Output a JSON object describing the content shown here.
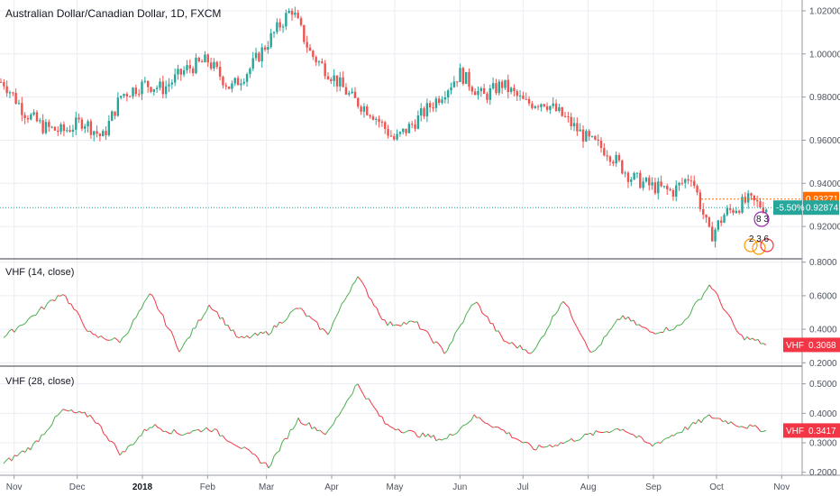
{
  "title": "Australian Dollar/Canadian Dollar, 1D, FXCM",
  "x_labels": [
    "Nov",
    "Dec",
    "2018",
    "Feb",
    "Mar",
    "Apr",
    "May",
    "Jun",
    "Jul",
    "Aug",
    "Sep",
    "Oct",
    "Nov"
  ],
  "colors": {
    "up": "#26a69a",
    "down": "#ef5350",
    "vhf_up": "#4caf50",
    "vhf_down": "#f23645",
    "last": "#26a69a",
    "high": "#ff6d00",
    "grid": "#e9ecf2",
    "border": "#9598a1"
  },
  "panels": [
    {
      "name": "price",
      "ticks": [
        "1.02000",
        "1.00000",
        "0.98000",
        "0.96000",
        "0.94000",
        "0.92000"
      ]
    },
    {
      "name": "vhf14",
      "label": "VHF (14, close)",
      "ticks": [
        "0.8000",
        "0.6000",
        "0.4000",
        "0.2000"
      ],
      "tag_label": "VHF",
      "tag_value": "0.3068"
    },
    {
      "name": "vhf28",
      "label": "VHF (28, close)",
      "ticks": [
        "0.5000",
        "0.4000",
        "0.3000",
        "0.2000"
      ],
      "tag_label": "VHF",
      "tag_value": "0.3417"
    }
  ],
  "price_tags": {
    "high": "0.93271",
    "last": "0.92874",
    "change": "-5.50%"
  },
  "events": {
    "top_numbers": "8 3",
    "bottom_numbers": "2 3 6"
  },
  "chart_data": [
    {
      "type": "candlestick",
      "title": "Australian Dollar/Canadian Dollar, 1D, FXCM",
      "ylim": [
        0.905,
        1.025
      ],
      "x": [
        "2017-10-27",
        "2017-11-06",
        "2017-11-15",
        "2017-11-24",
        "2017-12-04",
        "2017-12-13",
        "2017-12-22",
        "2018-01-02",
        "2018-01-11",
        "2018-01-22",
        "2018-02-01",
        "2018-02-12",
        "2018-02-21",
        "2018-03-02",
        "2018-03-13",
        "2018-03-22",
        "2018-04-02",
        "2018-04-11",
        "2018-04-20",
        "2018-05-01",
        "2018-05-10",
        "2018-05-21",
        "2018-06-01",
        "2018-06-12",
        "2018-06-21",
        "2018-07-02",
        "2018-07-11",
        "2018-07-20",
        "2018-08-01",
        "2018-08-10",
        "2018-08-21",
        "2018-08-30",
        "2018-09-10",
        "2018-09-19",
        "2018-09-28",
        "2018-10-05",
        "2018-10-16",
        "2018-10-25"
      ],
      "close": [
        0.987,
        0.973,
        0.966,
        0.964,
        0.969,
        0.961,
        0.981,
        0.986,
        0.984,
        0.993,
        0.997,
        0.984,
        0.993,
        1.006,
        1.021,
        1.0,
        0.989,
        0.979,
        0.973,
        0.96,
        0.968,
        0.979,
        0.991,
        0.98,
        0.986,
        0.977,
        0.978,
        0.971,
        0.96,
        0.955,
        0.943,
        0.939,
        0.936,
        0.944,
        0.915,
        0.926,
        0.932,
        0.9287
      ],
      "last": 0.92874,
      "high_marker": 0.93271
    },
    {
      "type": "line",
      "name": "VHF (14, close)",
      "ylim": [
        0.18,
        0.82
      ],
      "x": [
        "2017-10-27",
        "2017-11-10",
        "2017-11-24",
        "2017-12-08",
        "2017-12-22",
        "2018-01-05",
        "2018-01-19",
        "2018-02-02",
        "2018-02-16",
        "2018-03-02",
        "2018-03-16",
        "2018-03-30",
        "2018-04-13",
        "2018-04-27",
        "2018-05-11",
        "2018-05-25",
        "2018-06-08",
        "2018-06-22",
        "2018-07-06",
        "2018-07-20",
        "2018-08-03",
        "2018-08-17",
        "2018-08-31",
        "2018-09-14",
        "2018-09-28",
        "2018-10-12",
        "2018-10-26"
      ],
      "values": [
        0.35,
        0.48,
        0.62,
        0.36,
        0.33,
        0.61,
        0.27,
        0.55,
        0.34,
        0.38,
        0.53,
        0.37,
        0.72,
        0.43,
        0.44,
        0.26,
        0.57,
        0.33,
        0.26,
        0.58,
        0.25,
        0.48,
        0.38,
        0.42,
        0.67,
        0.36,
        0.3068
      ]
    },
    {
      "type": "line",
      "name": "VHF (28, close)",
      "ylim": [
        0.19,
        0.56
      ],
      "x": [
        "2017-10-27",
        "2017-11-10",
        "2017-11-24",
        "2017-12-08",
        "2017-12-22",
        "2018-01-05",
        "2018-01-19",
        "2018-02-02",
        "2018-02-16",
        "2018-03-02",
        "2018-03-16",
        "2018-03-30",
        "2018-04-13",
        "2018-04-27",
        "2018-05-11",
        "2018-05-25",
        "2018-06-08",
        "2018-06-22",
        "2018-07-06",
        "2018-07-20",
        "2018-08-03",
        "2018-08-17",
        "2018-08-31",
        "2018-09-14",
        "2018-09-28",
        "2018-10-12",
        "2018-10-26"
      ],
      "values": [
        0.23,
        0.29,
        0.41,
        0.39,
        0.26,
        0.36,
        0.33,
        0.35,
        0.29,
        0.22,
        0.38,
        0.33,
        0.5,
        0.36,
        0.33,
        0.31,
        0.39,
        0.34,
        0.28,
        0.3,
        0.33,
        0.35,
        0.29,
        0.34,
        0.39,
        0.36,
        0.3417
      ]
    }
  ]
}
